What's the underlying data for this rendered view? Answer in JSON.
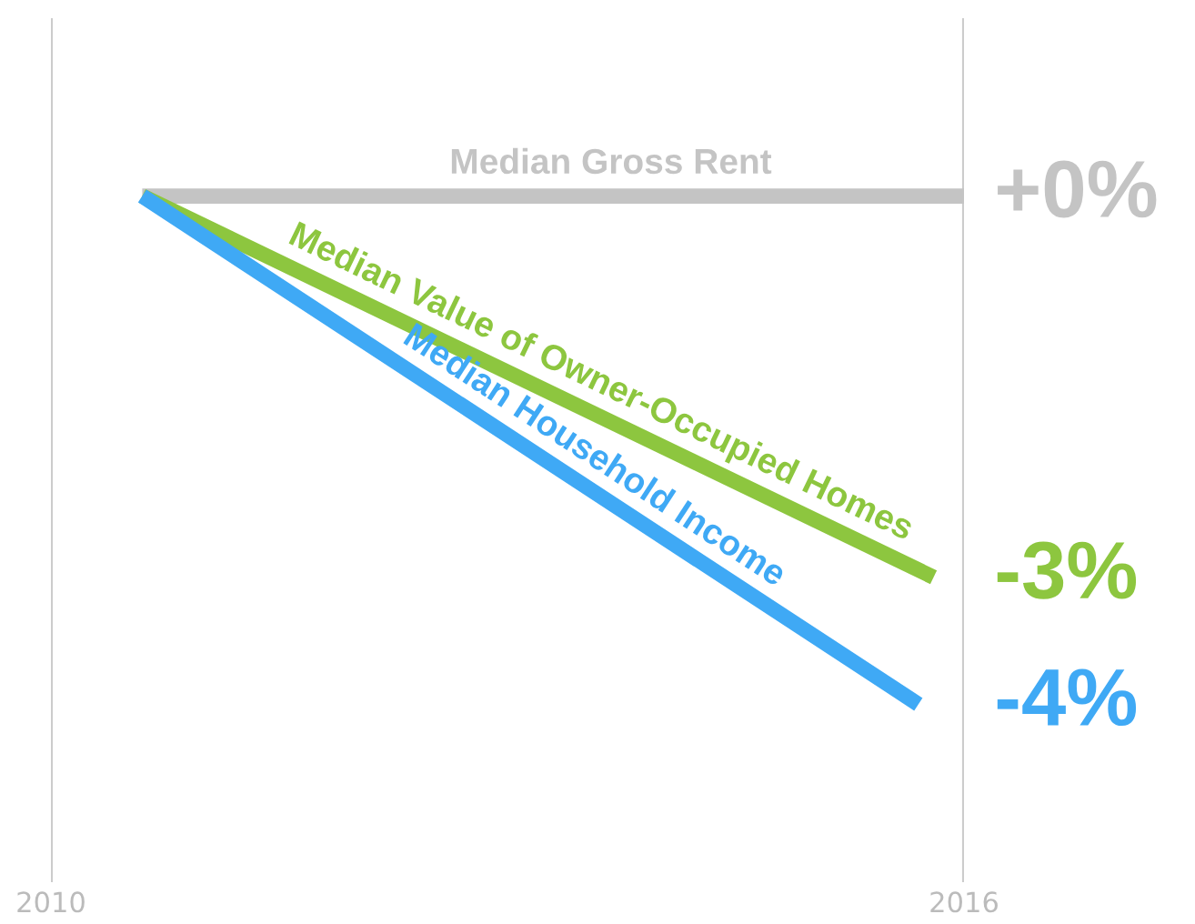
{
  "chart_data": {
    "type": "line",
    "xlim": [
      2010,
      2016
    ],
    "xticks": [
      2010,
      2016
    ],
    "ylim": [
      -5.4,
      1.4
    ],
    "ref_lines": [
      {
        "axis": "x",
        "value": 2010,
        "color": "#cccccc"
      },
      {
        "axis": "x",
        "value": 2016,
        "color": "#cccccc"
      }
    ],
    "tick_labels": "x",
    "series": [
      {
        "name": "Median Gross Rent",
        "color": "#c4c4c4",
        "x": [
          2010.6,
          2016
        ],
        "values": [
          0,
          0
        ],
        "value_labels": [
          null,
          "+0%"
        ]
      },
      {
        "name": "Median Value of Owner-Occupied Homes",
        "color": "#8dc63f",
        "x": [
          2010.6,
          2015.8
        ],
        "values": [
          0,
          -3
        ],
        "value_labels": [
          null,
          "-3%"
        ]
      },
      {
        "name": "Median Household Income",
        "color": "#3fa9f5",
        "x": [
          2010.6,
          2015.7
        ],
        "values": [
          0,
          -4
        ],
        "value_labels": [
          null,
          "-4%"
        ]
      }
    ]
  }
}
